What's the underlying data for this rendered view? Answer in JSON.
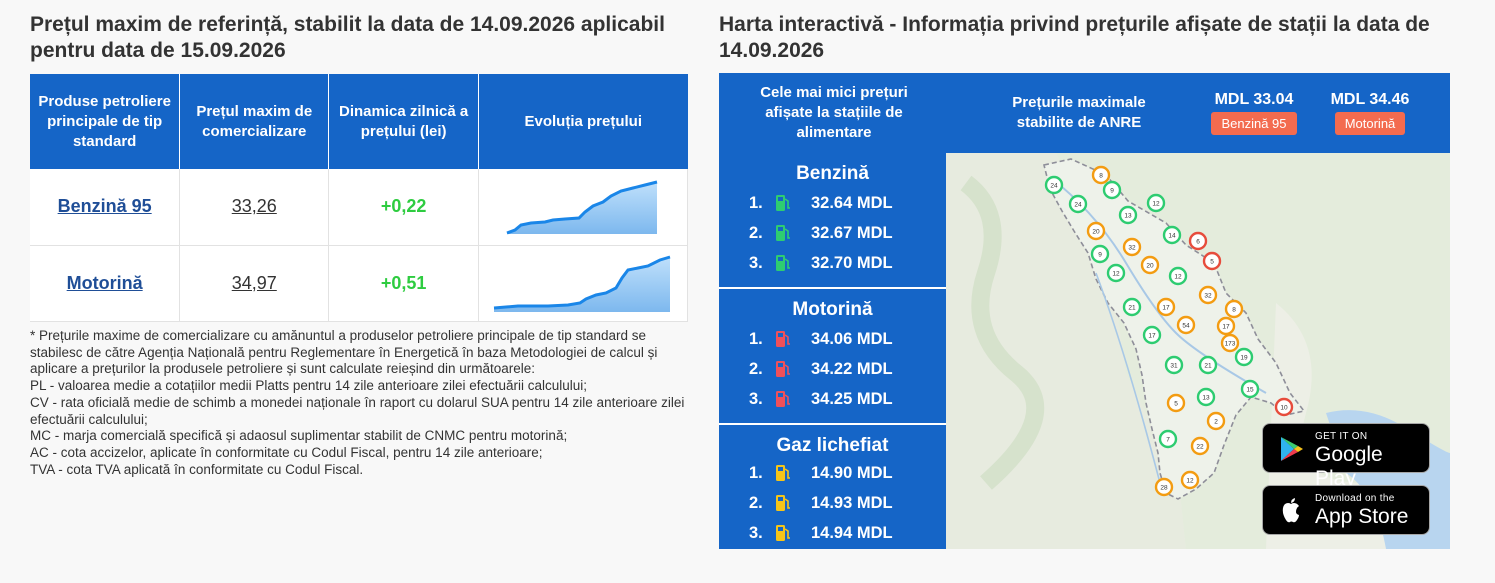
{
  "left": {
    "title": "Prețul maxim de referință, stabilit la data de 14.09.2026 aplicabil pentru data de 15.09.2026",
    "table": {
      "headers": [
        "Produse petroliere principale de tip standard",
        "Prețul maxim de comercializare",
        "Dinamica zilnică a prețului (lei)",
        "Evoluția prețului"
      ],
      "rows": [
        {
          "product": "Benzină 95",
          "price": "33,26",
          "delta": "+0,22"
        },
        {
          "product": "Motorină",
          "price": "34,97",
          "delta": "+0,51"
        }
      ]
    },
    "notes": [
      "* Prețurile maxime de comercializare cu amănuntul a produselor petroliere principale de tip standard se stabilesc de către Agenția Națională pentru Reglementare în Energetică în baza Metodologiei de calcul și aplicare a prețurilor la produsele petroliere și sunt calculate reieșind din următoarele:",
      "PL - valoarea medie a cotațiilor medii Platts pentru 14 zile anterioare zilei efectuării calculului;",
      "CV - rata oficială medie de schimb a monedei naționale în raport cu dolarul SUA pentru 14 zile anterioare zilei efectuării calculului;",
      "MC - marja comercială specifică și adaosul suplimentar stabilit de CNMC pentru motorină;",
      "AC - cota accizelor, aplicate în conformitate cu Codul Fiscal, pentru 14 zile anterioare;",
      "TVA - cota TVA aplicată în conformitate cu Codul Fiscal."
    ]
  },
  "right": {
    "title": "Harta interactivă - Informația privind prețurile afișate de stații la data de 14.09.2026",
    "header": {
      "lowest_label": "Cele mai mici prețuri afișate la stațiile de alimentare",
      "max_label": "Prețurile maximale stabilite de ANRE",
      "max_values": [
        {
          "value": "MDL 33.04",
          "badge": "Benzină 95"
        },
        {
          "value": "MDL 34.46",
          "badge": "Motorină"
        }
      ]
    },
    "sections": [
      {
        "title": "Benzină",
        "pump_color": "#2ecc71",
        "items": [
          {
            "rank": "1.",
            "price": "32.64 MDL"
          },
          {
            "rank": "2.",
            "price": "32.67 MDL"
          },
          {
            "rank": "3.",
            "price": "32.70 MDL"
          }
        ]
      },
      {
        "title": "Motorină",
        "pump_color": "#f0505a",
        "items": [
          {
            "rank": "1.",
            "price": "34.06 MDL"
          },
          {
            "rank": "2.",
            "price": "34.22 MDL"
          },
          {
            "rank": "3.",
            "price": "34.25 MDL"
          }
        ]
      },
      {
        "title": "Gaz lichefiat",
        "pump_color": "#f5c518",
        "items": [
          {
            "rank": "1.",
            "price": "14.90 MDL"
          },
          {
            "rank": "2.",
            "price": "14.93 MDL"
          },
          {
            "rank": "3.",
            "price": "14.94 MDL"
          }
        ]
      }
    ],
    "map_markers": [
      "24",
      "8",
      "9",
      "12",
      "24",
      "13",
      "20",
      "14",
      "6",
      "32",
      "9",
      "12",
      "20",
      "12",
      "5",
      "32",
      "8",
      "21",
      "17",
      "17",
      "54",
      "17",
      "173",
      "19",
      "31",
      "21",
      "15",
      "5",
      "13",
      "10",
      "2",
      "7",
      "22",
      "12",
      "28"
    ],
    "stores": [
      {
        "small": "GET IT ON",
        "big": "Google Play"
      },
      {
        "small": "Download on the",
        "big": "App Store"
      }
    ]
  }
}
